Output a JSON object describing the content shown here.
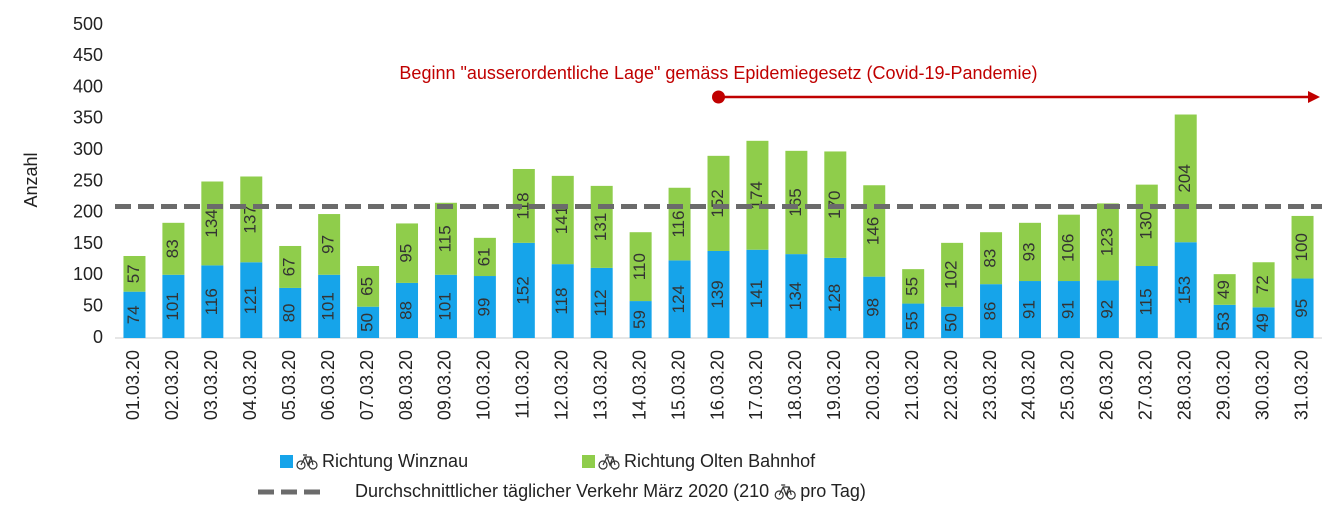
{
  "chart_data": {
    "type": "stacked_bar",
    "y_axis_label": "Anzahl",
    "categories": [
      "01.03.20",
      "02.03.20",
      "03.03.20",
      "04.03.20",
      "05.03.20",
      "06.03.20",
      "07.03.20",
      "08.03.20",
      "09.03.20",
      "10.03.20",
      "11.03.20",
      "12.03.20",
      "13.03.20",
      "14.03.20",
      "15.03.20",
      "16.03.20",
      "17.03.20",
      "18.03.20",
      "19.03.20",
      "20.03.20",
      "21.03.20",
      "22.03.20",
      "23.03.20",
      "24.03.20",
      "25.03.20",
      "26.03.20",
      "27.03.20",
      "28.03.20",
      "29.03.20",
      "30.03.20",
      "31.03.20"
    ],
    "series": [
      {
        "name": "Richtung Winznau",
        "color": "#16a4ea",
        "values": [
          74,
          101,
          116,
          121,
          80,
          101,
          50,
          88,
          101,
          99,
          152,
          118,
          112,
          59,
          124,
          139,
          141,
          134,
          128,
          98,
          55,
          50,
          86,
          91,
          91,
          92,
          115,
          153,
          53,
          49,
          95
        ]
      },
      {
        "name": "Richtung Olten Bahnhof",
        "color": "#8fcd4b",
        "values": [
          57,
          83,
          134,
          137,
          67,
          97,
          65,
          95,
          115,
          61,
          118,
          141,
          131,
          110,
          116,
          152,
          174,
          165,
          170,
          146,
          55,
          102,
          83,
          93,
          106,
          123,
          130,
          204,
          49,
          72,
          100
        ]
      }
    ],
    "average": {
      "value": 210,
      "color": "#6b6b6b",
      "label_parts": [
        "Durchschnittlicher täglicher Verkehr März 2020 (210",
        "pro Tag)"
      ]
    },
    "annotation": {
      "text": "Beginn \"ausserordentliche Lage\" gemäss Epidemiegesetz (Covid-19-Pandemie)",
      "start": "16.03.20",
      "color": "#c00000"
    },
    "ylim": [
      0,
      500
    ],
    "yticks": [
      0,
      50,
      100,
      150,
      200,
      250,
      300,
      350,
      400,
      450,
      500
    ],
    "grid": false
  }
}
